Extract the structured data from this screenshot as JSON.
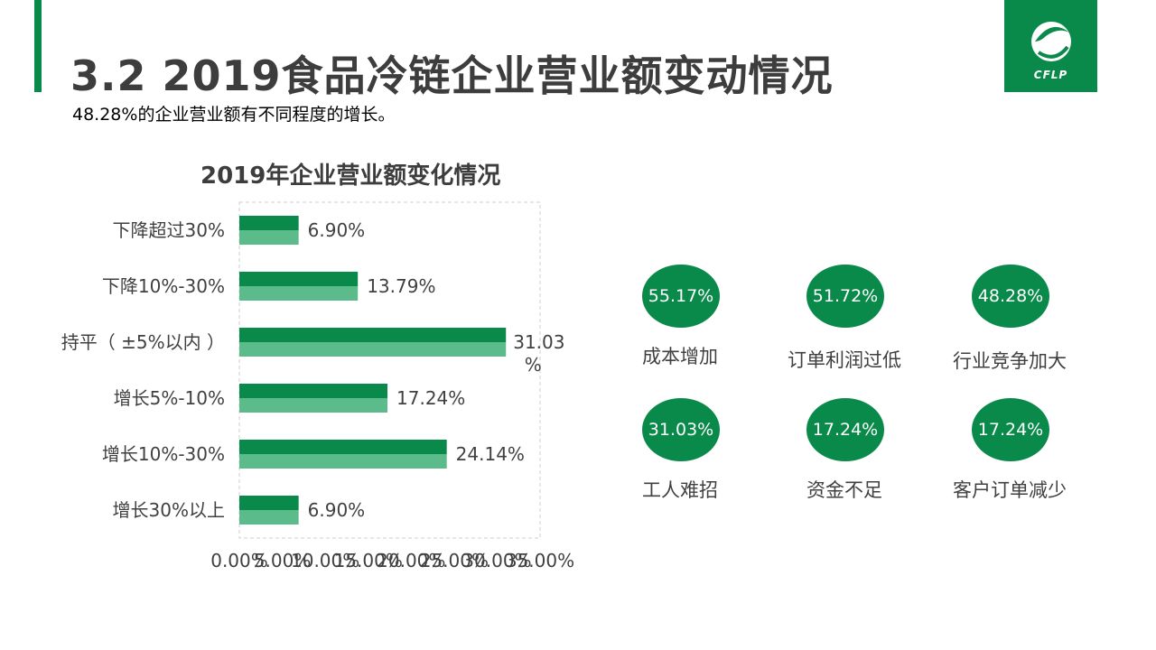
{
  "header": {
    "title": "3.2 2019食品冷链企业营业额变动情况",
    "subtitle": "48.28%的企业营业额有不同程度的增长。",
    "logo_text": "CFLP"
  },
  "colors": {
    "accent": "#0a8a4a",
    "bar_dark": "#0a8a4a",
    "bar_light": "#5cbb8a",
    "grid": "#cfcfcf"
  },
  "chart_data": {
    "type": "bar",
    "orientation": "horizontal",
    "title": "2019年企业营业额变化情况",
    "categories": [
      "下降超过30%",
      "下降10%-30%",
      "持平（ ±5%以内 ）",
      "增长5%-10%",
      "增长10%-30%",
      "增长30%以上"
    ],
    "values": [
      6.9,
      13.79,
      31.03,
      17.24,
      24.14,
      6.9
    ],
    "value_labels": [
      "6.90%",
      "13.79%",
      "31.03%",
      "17.24%",
      "24.14%",
      "6.90%"
    ],
    "xlim": [
      0,
      35
    ],
    "x_ticks": [
      "0.00%",
      "5.00%",
      "10.00%",
      "15.00%",
      "20.00%",
      "25.00%",
      "30.00%",
      "35.00%"
    ],
    "grid": false,
    "legend": "none"
  },
  "reasons": [
    {
      "value": "55.17%",
      "label": "成本增加"
    },
    {
      "value": "51.72%",
      "label": "订单利润过低"
    },
    {
      "value": "48.28%",
      "label": "行业竞争加大"
    },
    {
      "value": "31.03%",
      "label": "工人难招"
    },
    {
      "value": "17.24%",
      "label": "资金不足"
    },
    {
      "value": "17.24%",
      "label": "客户订单减少"
    }
  ]
}
